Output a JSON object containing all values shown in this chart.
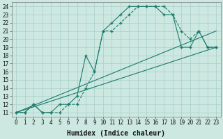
{
  "xlabel": "Humidex (Indice chaleur)",
  "xlim": [
    -0.5,
    23.5
  ],
  "ylim": [
    10.5,
    24.5
  ],
  "xticks": [
    0,
    1,
    2,
    3,
    4,
    5,
    6,
    7,
    8,
    9,
    10,
    11,
    12,
    13,
    14,
    15,
    16,
    17,
    18,
    19,
    20,
    21,
    22,
    23
  ],
  "yticks": [
    11,
    12,
    13,
    14,
    15,
    16,
    17,
    18,
    19,
    20,
    21,
    22,
    23,
    24
  ],
  "bg_color": "#cce8e0",
  "line_color": "#1a7a6e",
  "grid_color": "#a8cfc8",
  "line1_x": [
    0,
    1,
    2,
    3,
    4,
    5,
    6,
    7,
    8,
    9,
    10,
    11,
    12,
    13,
    14,
    15,
    16,
    17,
    18,
    19,
    20,
    21,
    22,
    23
  ],
  "line1_y": [
    11,
    11,
    12,
    11,
    11,
    11,
    12,
    12,
    14,
    16,
    21,
    21,
    22,
    23,
    24,
    24,
    24,
    24,
    23,
    21,
    20,
    21,
    19,
    19
  ],
  "line2_x": [
    0,
    1,
    2,
    3,
    4,
    5,
    6,
    7,
    8,
    9,
    10,
    11,
    12,
    13,
    14,
    15,
    16,
    17,
    18,
    19,
    20,
    21,
    22,
    23
  ],
  "line2_y": [
    11,
    11,
    12,
    11,
    11,
    12,
    12,
    13,
    18,
    16,
    21,
    22,
    23,
    24,
    24,
    24,
    24,
    23,
    23,
    19,
    19,
    21,
    19,
    19
  ],
  "line3_x": [
    0,
    23
  ],
  "line3_y": [
    11,
    19
  ],
  "line4_x": [
    0,
    23
  ],
  "line4_y": [
    11,
    21
  ],
  "lw": 0.8,
  "ms": 3,
  "tick_fontsize": 5.5,
  "xlabel_fontsize": 7
}
